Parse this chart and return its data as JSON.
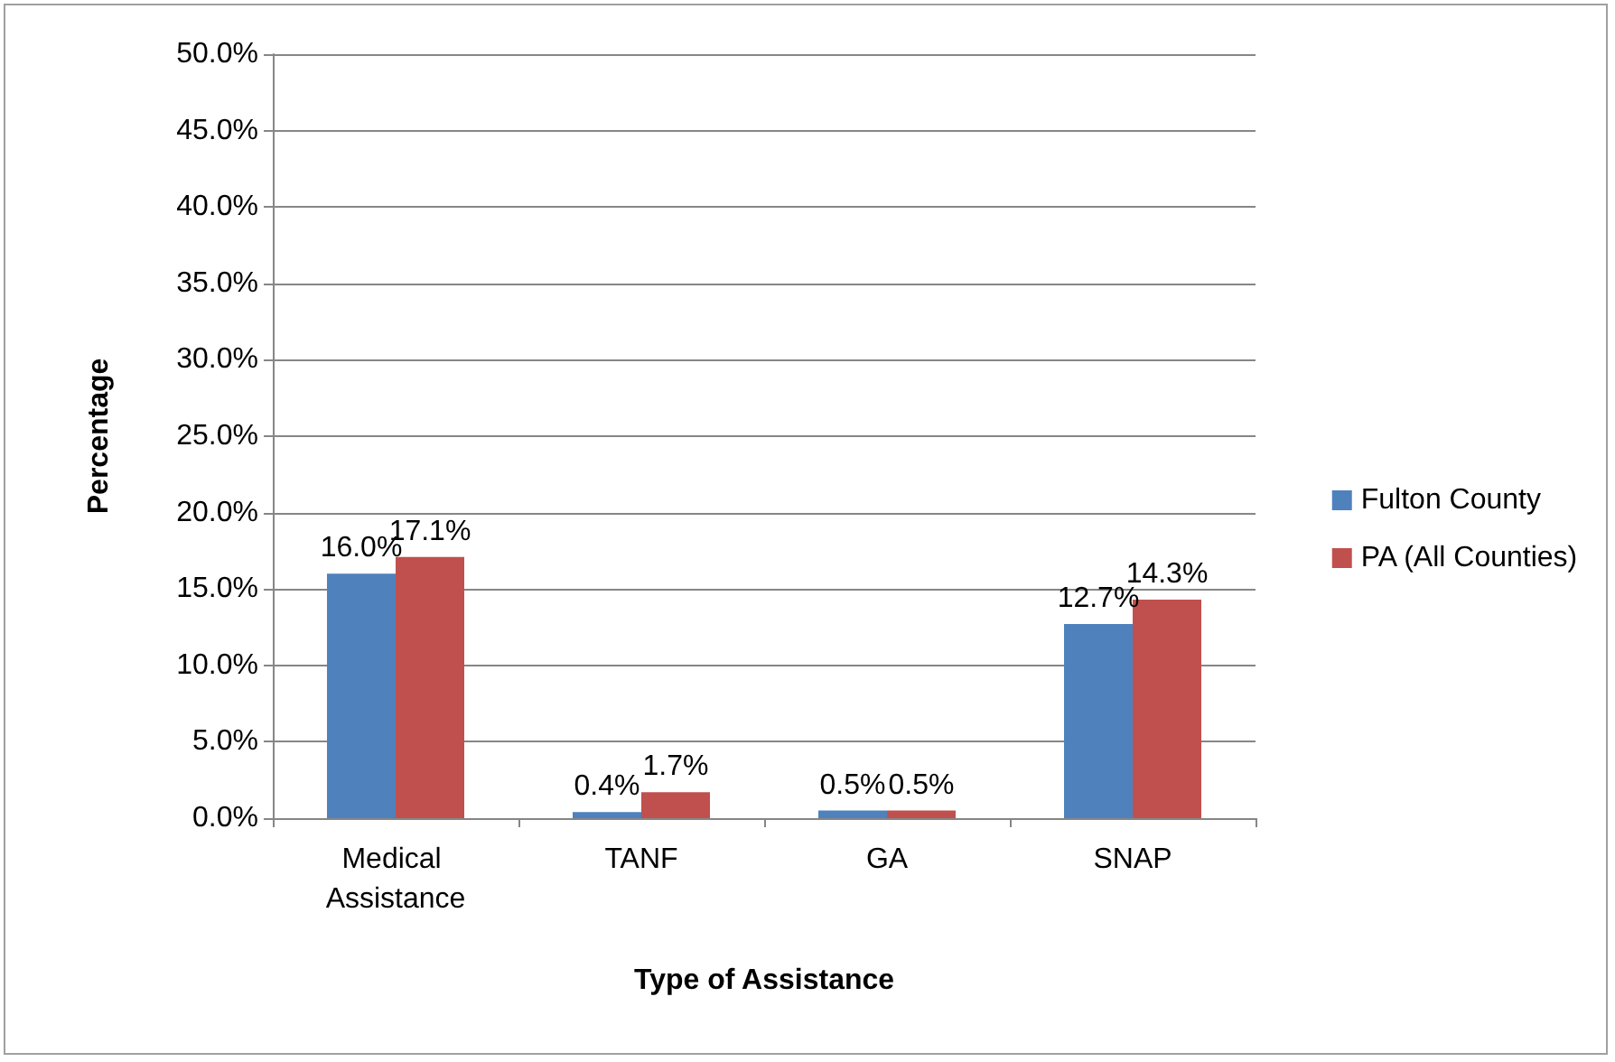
{
  "chart_data": {
    "type": "bar",
    "xlabel": "Type of Assistance",
    "ylabel": "Percentage",
    "categories": [
      "Medical Assistance",
      "TANF",
      "GA",
      "SNAP"
    ],
    "series": [
      {
        "name": "Fulton County",
        "color": "#4f81bd",
        "values": [
          16.0,
          0.4,
          0.5,
          12.7
        ],
        "value_labels": [
          "16.0%",
          "0.4%",
          "0.5%",
          "12.7%"
        ]
      },
      {
        "name": "PA (All Counties)",
        "color": "#c0504d",
        "values": [
          17.1,
          1.7,
          0.5,
          14.3
        ],
        "value_labels": [
          "17.1%",
          "1.7%",
          "0.5%",
          "14.3%"
        ]
      }
    ],
    "ylim": [
      0,
      50
    ],
    "yticks": [
      {
        "value": 0,
        "label": "0.0%"
      },
      {
        "value": 5,
        "label": "5.0%"
      },
      {
        "value": 10,
        "label": "10.0%"
      },
      {
        "value": 15,
        "label": "15.0%"
      },
      {
        "value": 20,
        "label": "20.0%"
      },
      {
        "value": 25,
        "label": "25.0%"
      },
      {
        "value": 30,
        "label": "30.0%"
      },
      {
        "value": 35,
        "label": "35.0%"
      },
      {
        "value": 40,
        "label": "40.0%"
      },
      {
        "value": 45,
        "label": "45.0%"
      },
      {
        "value": 50,
        "label": "50.0%"
      }
    ],
    "grid": "y",
    "legend": "right"
  }
}
